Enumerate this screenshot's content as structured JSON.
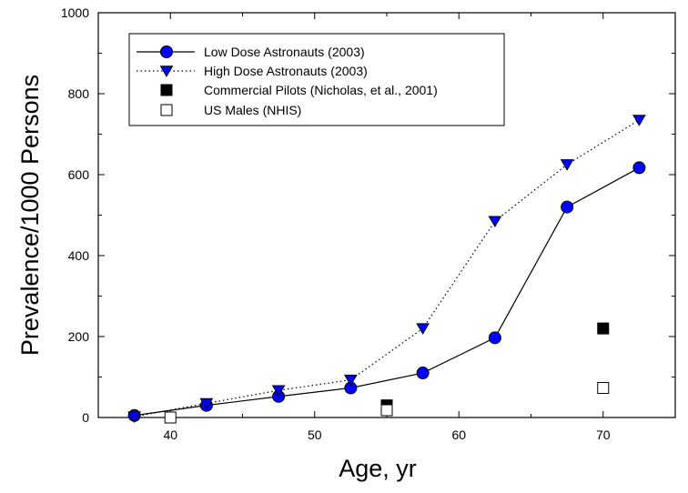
{
  "chart_data": {
    "type": "line",
    "xlabel": "Age, yr",
    "ylabel": "Prevalence/1000 Persons",
    "xlim": [
      35,
      75
    ],
    "ylim": [
      0,
      1000
    ],
    "xticks": [
      40,
      50,
      60,
      70
    ],
    "yticks": [
      0,
      200,
      400,
      600,
      800,
      1000
    ],
    "grid": false,
    "legend_position": "top-left",
    "series": [
      {
        "name": "Low Dose Astronauts (2003)",
        "marker": "circle",
        "line": "solid",
        "color": "#0000ff",
        "x": [
          37.5,
          42.5,
          47.5,
          52.5,
          57.5,
          62.5,
          67.5,
          72.5
        ],
        "y": [
          5,
          30,
          52,
          73,
          110,
          197,
          520,
          617
        ]
      },
      {
        "name": "High Dose Astronauts (2003)",
        "marker": "triangle-down",
        "line": "dotted",
        "color": "#0000ff",
        "x": [
          37.5,
          42.5,
          47.5,
          52.5,
          57.5,
          62.5,
          67.5,
          72.5
        ],
        "y": [
          2,
          35,
          67,
          93,
          220,
          485,
          625,
          735
        ]
      },
      {
        "name": "Commercial Pilots (Nicholas, et al., 2001)",
        "marker": "square-filled",
        "line": "none",
        "color": "#000000",
        "x": [
          55,
          70
        ],
        "y": [
          30,
          220
        ]
      },
      {
        "name": "US Males (NHIS)",
        "marker": "square-open",
        "line": "none",
        "color": "#000000",
        "x": [
          40,
          55,
          70
        ],
        "y": [
          0,
          18,
          73
        ]
      }
    ]
  }
}
